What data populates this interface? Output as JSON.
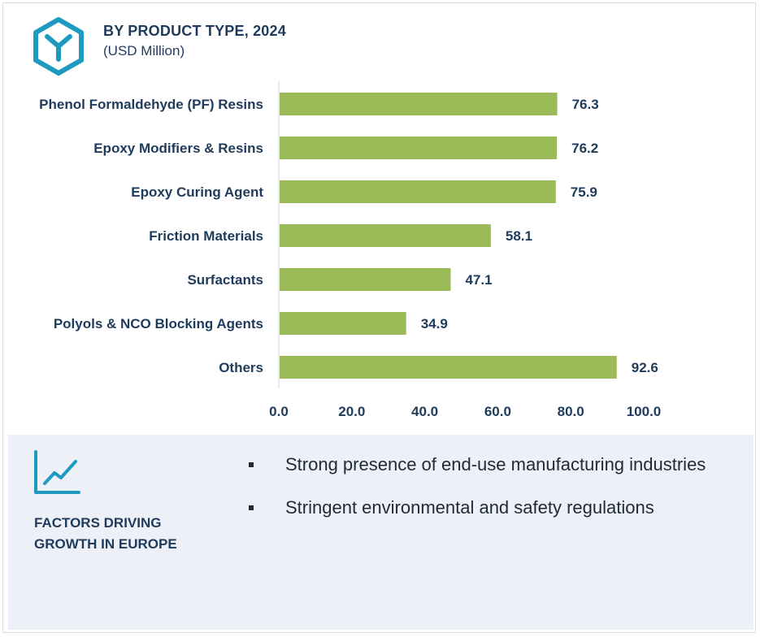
{
  "header": {
    "title": "BY PRODUCT TYPE, 2024",
    "subtitle": "(USD Million)"
  },
  "colors": {
    "bar": "#9bbb59",
    "text": "#1f3b5c",
    "accent": "#1e9ac0",
    "panel": "#eef0f7"
  },
  "chart_data": {
    "type": "bar",
    "orientation": "horizontal",
    "categories": [
      "Phenol Formaldehyde (PF) Resins",
      "Epoxy Modifiers & Resins",
      "Epoxy Curing Agent",
      "Friction Materials",
      "Surfactants",
      "Polyols & NCO Blocking Agents",
      "Others"
    ],
    "values": [
      76.3,
      76.2,
      75.9,
      58.1,
      47.1,
      34.9,
      92.6
    ],
    "value_labels": [
      "76.3",
      "76.2",
      "75.9",
      "58.1",
      "47.1",
      "34.9",
      "92.6"
    ],
    "xlim": [
      0,
      100
    ],
    "ticks": [
      "0.0",
      "20.0",
      "40.0",
      "60.0",
      "80.0",
      "100.0"
    ],
    "tick_values": [
      0,
      20,
      40,
      60,
      80,
      100
    ],
    "grid": false,
    "legend": "none"
  },
  "factors": {
    "icon": "line-chart-icon",
    "title": "FACTORS DRIVING GROWTH IN EUROPE",
    "items": [
      "Strong presence of end-use manufacturing industries",
      "Stringent environmental and safety regulations"
    ]
  }
}
